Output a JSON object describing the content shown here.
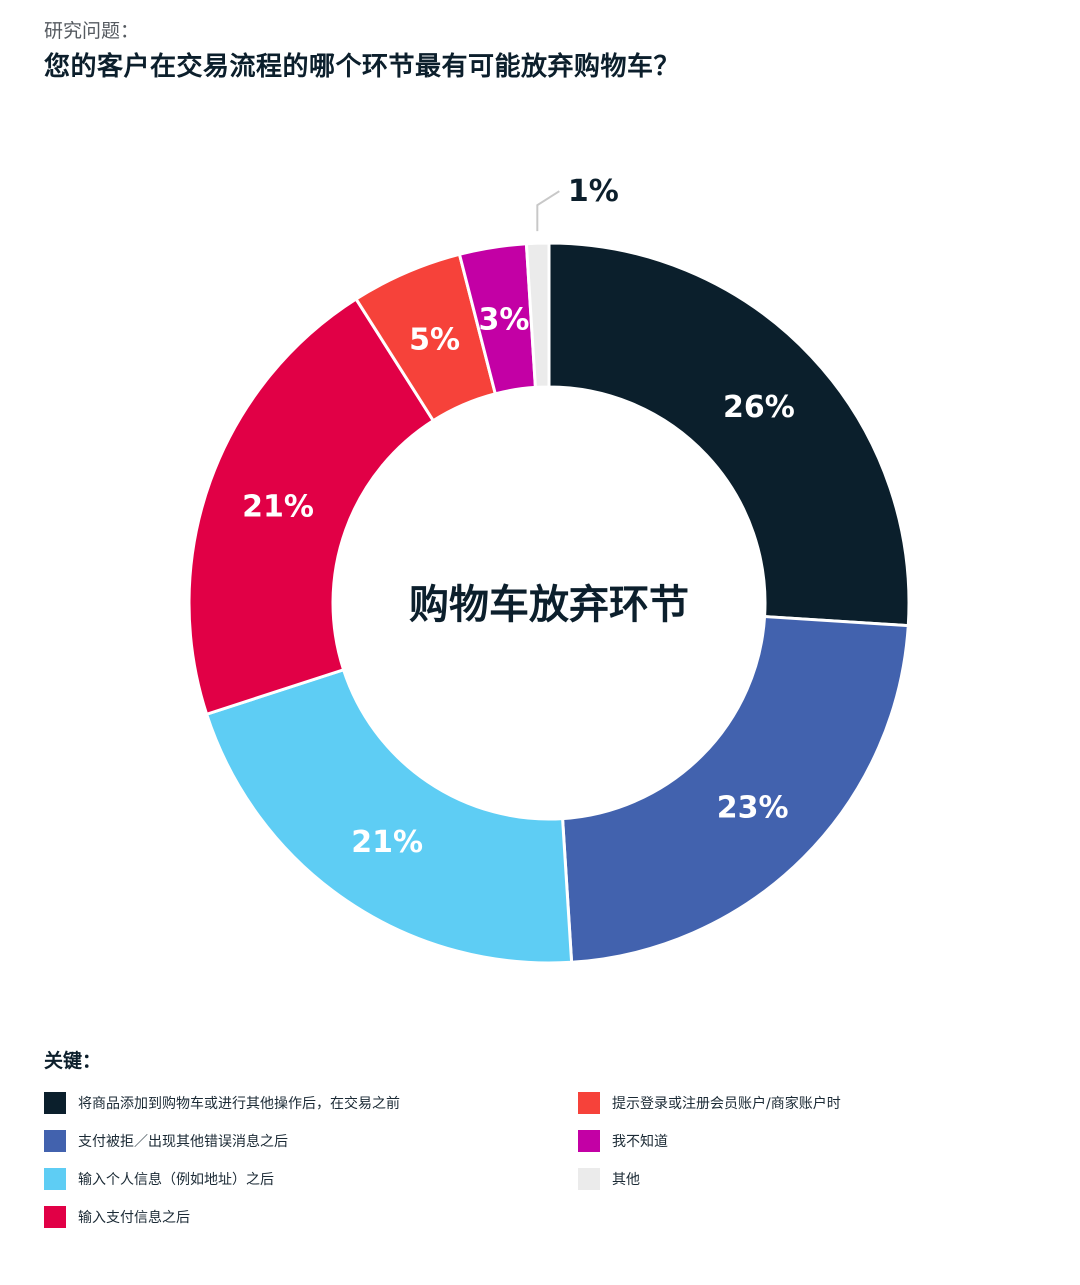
{
  "header": {
    "eyebrow": "研究问题：",
    "question": "您的客户在交易流程的哪个环节最有可能放弃购物车？"
  },
  "chart_data": {
    "type": "pie",
    "donut": true,
    "center_label": "购物车放弃环节",
    "legend_title": "关键：",
    "legend_position": "bottom",
    "slices": [
      {
        "label": "将商品添加到购物车或进行其他操作后，在交易之前",
        "value": 26,
        "display": "26%",
        "color": "#0b1f2c"
      },
      {
        "label": "支付被拒／出现其他错误消息之后",
        "value": 23,
        "display": "23%",
        "color": "#4262ae"
      },
      {
        "label": "输入个人信息（例如地址）之后",
        "value": 21,
        "display": "21%",
        "color": "#5ecdf4"
      },
      {
        "label": "输入支付信息之后",
        "value": 21,
        "display": "21%",
        "color": "#e10046"
      },
      {
        "label": "提示登录或注册会员账户/商家账户时",
        "value": 5,
        "display": "5%",
        "color": "#f6423a"
      },
      {
        "label": "我不知道",
        "value": 3,
        "display": "3%",
        "color": "#c300a5"
      },
      {
        "label": "其他",
        "value": 1,
        "display": "1%",
        "color": "#ebebeb"
      }
    ]
  }
}
